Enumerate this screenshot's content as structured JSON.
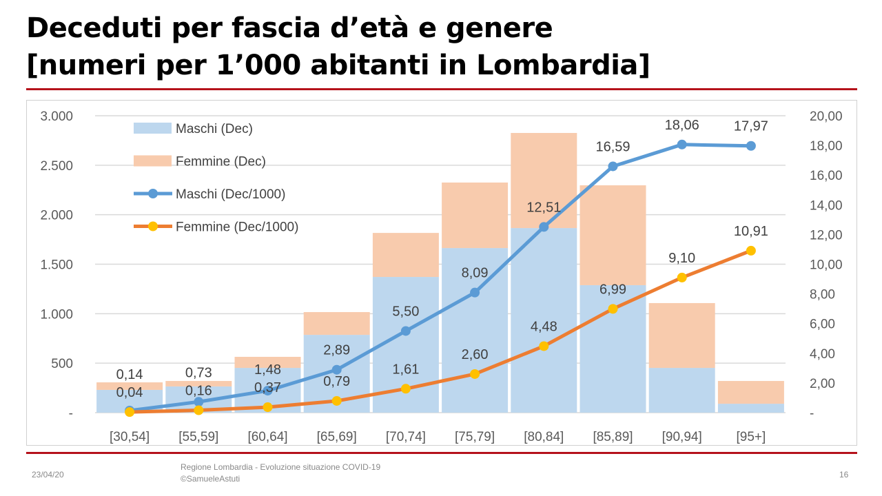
{
  "title_line1": "Deceduti per fascia d’età e genere",
  "title_line2": "[numeri per 1’000 abitanti in Lombardia]",
  "footer": {
    "date": "23/04/20",
    "source_line1": "Regione Lombardia - Evoluzione situazione COVID-19",
    "source_line2": "©SamueleAstuti",
    "page": "16"
  },
  "colors": {
    "maschi_bar": "#bdd7ee",
    "femmine_bar": "#f8cbad",
    "maschi_line": "#5b9bd5",
    "femmine_line": "#ed7d31",
    "femmine_marker": "#ffc000",
    "rule": "#b5121b"
  },
  "chart_data": {
    "type": "bar+line",
    "categories": [
      "[30,54]",
      "[55,59]",
      "[60,64]",
      "[65,69]",
      "[70,74]",
      "[75,79]",
      "[80,84]",
      "[85,89]",
      "[90,94]",
      "[95+]"
    ],
    "left_axis": {
      "range": [
        0,
        3000
      ],
      "ticks": [
        "-",
        "500",
        "1.000",
        "1.500",
        "2.000",
        "2.500",
        "3.000"
      ]
    },
    "right_axis": {
      "range": [
        0,
        20
      ],
      "ticks": [
        "-",
        "2,00",
        "4,00",
        "6,00",
        "8,00",
        "10,00",
        "12,00",
        "14,00",
        "16,00",
        "18,00",
        "20,00"
      ]
    },
    "grid": true,
    "legend_placement": "top-left",
    "series": [
      {
        "name": "Maschi (Dec)",
        "kind": "stacked-bar",
        "axis": "left",
        "values": [
          230,
          265,
          452,
          786,
          1371,
          1663,
          1865,
          1288,
          452,
          90
        ]
      },
      {
        "name": "Femmine (Dec)",
        "kind": "stacked-bar",
        "axis": "left",
        "values": [
          76,
          55,
          112,
          230,
          445,
          662,
          961,
          1009,
          655,
          230
        ]
      },
      {
        "name": "Maschi (Dec/1000)",
        "kind": "line",
        "axis": "right",
        "values": [
          0.14,
          0.73,
          1.48,
          2.89,
          5.5,
          8.09,
          12.51,
          16.59,
          18.06,
          17.97
        ],
        "labels": [
          "0,14",
          "0,73",
          "1,48",
          "2,89",
          "5,50",
          "8,09",
          "12,51",
          "16,59",
          "18,06",
          "17,97"
        ]
      },
      {
        "name": "Femmine (Dec/1000)",
        "kind": "line",
        "axis": "right",
        "values": [
          0.04,
          0.16,
          0.37,
          0.79,
          1.61,
          2.6,
          4.48,
          6.99,
          9.1,
          10.91
        ],
        "labels": [
          "0,04",
          "0,16",
          "0,37",
          "0,79",
          "1,61",
          "2,60",
          "4,48",
          "6,99",
          "9,10",
          "10,91"
        ]
      }
    ]
  }
}
